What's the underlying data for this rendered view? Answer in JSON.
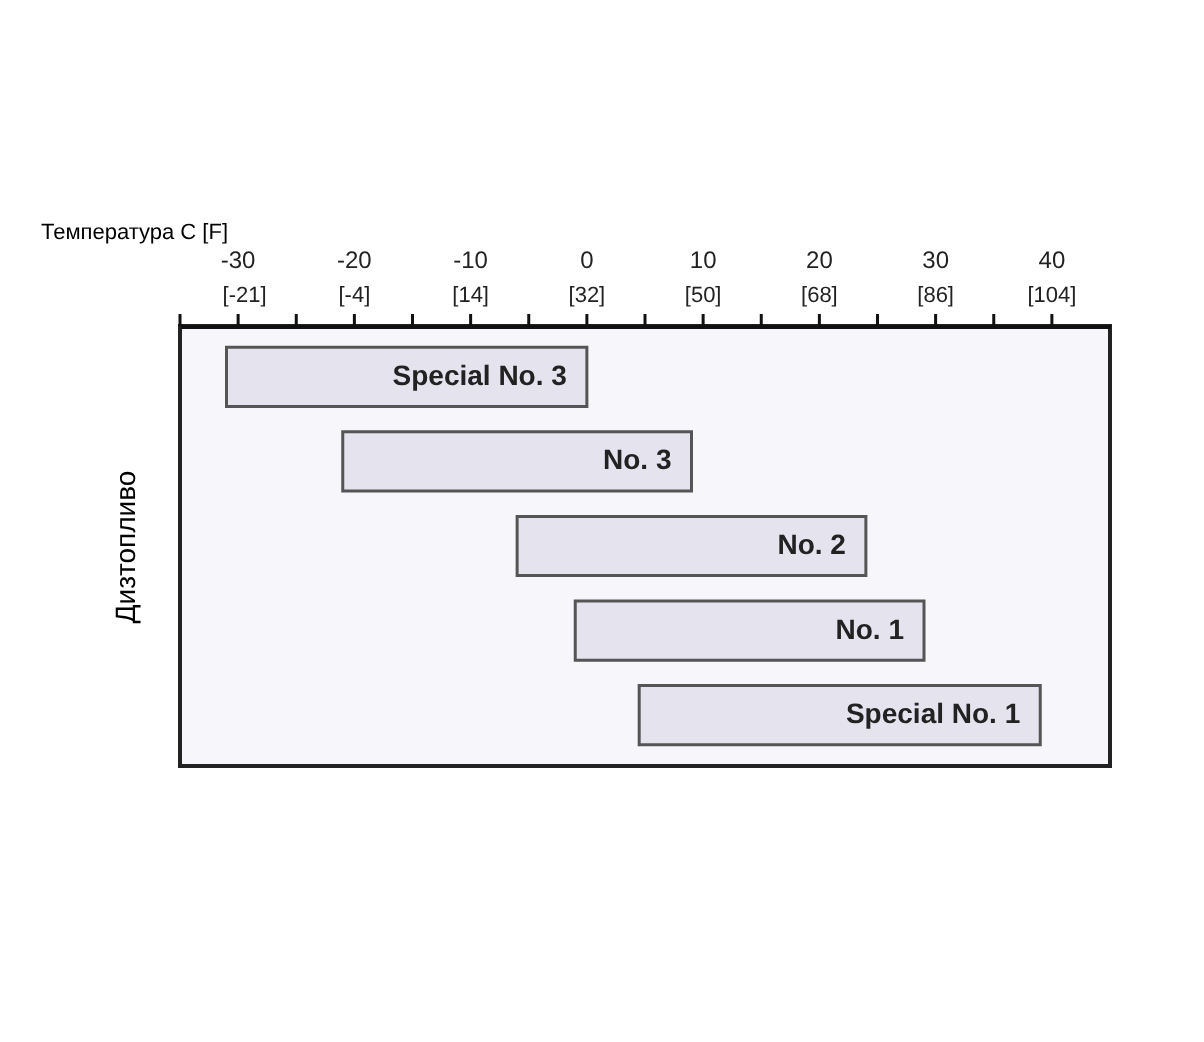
{
  "chart_data": {
    "type": "bar",
    "orientation": "horizontal",
    "xlabel": "Температура C [F]",
    "ylabel": "Дизтопливо",
    "categories": [
      "Special No. 3",
      "No. 3",
      "No. 2",
      "No. 1",
      "Special No. 1"
    ],
    "base": [
      -31,
      -21,
      -6,
      -1,
      4.5
    ],
    "values": [
      31,
      30,
      30,
      30,
      34.5
    ],
    "color": "#e4e3ee",
    "xlim": [
      -35,
      45
    ],
    "xticks": [
      {
        "value": -35,
        "label": null
      },
      -30,
      {
        "value": -25,
        "label": null
      },
      -20,
      {
        "value": -15,
        "label": null
      },
      -10,
      {
        "value": -5,
        "label": null
      },
      0,
      {
        "value": 5,
        "label": null
      },
      10,
      {
        "value": 15,
        "label": null
      },
      20,
      {
        "value": 25,
        "label": null
      },
      30,
      {
        "value": 35,
        "label": null
      },
      40
    ],
    "x2lim": [
      -31,
      113
    ],
    "x2ticks": [
      {
        "value": -21,
        "label": "[-21]"
      },
      {
        "value": -4,
        "label": "[-4]"
      },
      {
        "value": 14,
        "label": "[14]"
      },
      {
        "value": 32,
        "label": "[32]"
      },
      {
        "value": 50,
        "label": "[50]"
      },
      {
        "value": 68,
        "label": "[68]"
      },
      {
        "value": 86,
        "label": "[86]"
      },
      {
        "value": 104,
        "label": "[104]"
      }
    ],
    "tick_labels": "x",
    "grid": false
  }
}
